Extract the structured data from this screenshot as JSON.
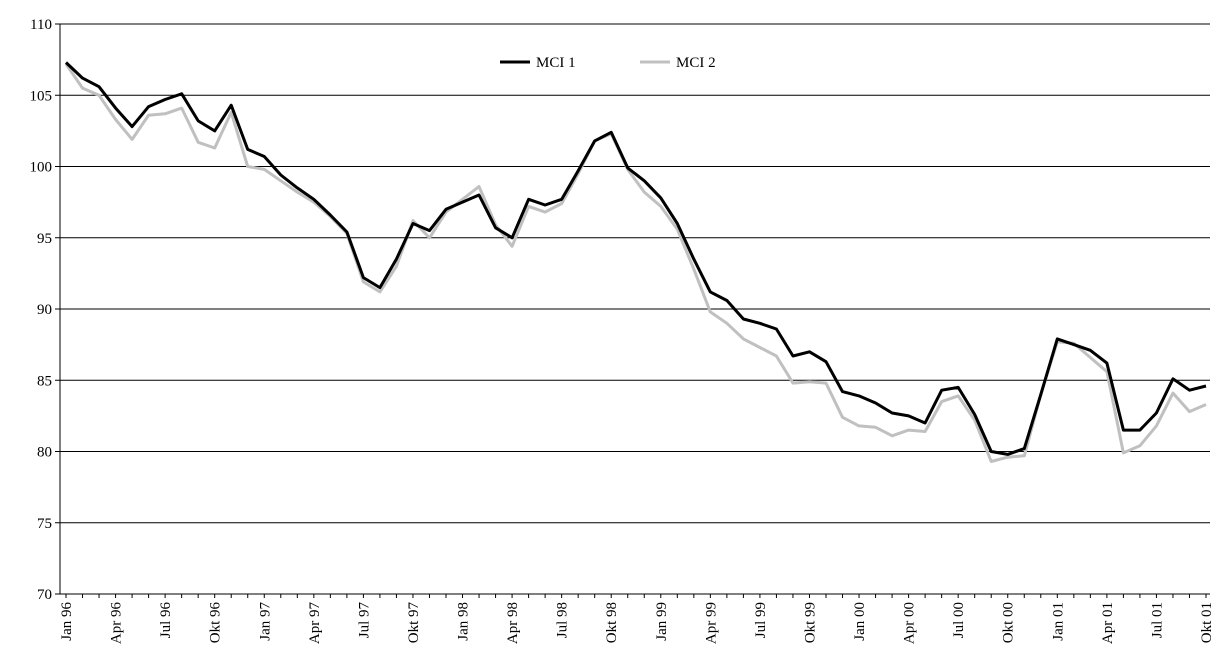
{
  "chart_data": {
    "type": "line",
    "categories": [
      "Jan 96",
      null,
      null,
      "Apr 96",
      null,
      null,
      "Jul 96",
      null,
      null,
      "Okt 96",
      null,
      null,
      "Jan 97",
      null,
      null,
      "Apr 97",
      null,
      null,
      "Jul 97",
      null,
      null,
      "Okt 97",
      null,
      null,
      "Jan 98",
      null,
      null,
      "Apr 98",
      null,
      null,
      "Jul 98",
      null,
      null,
      "Okt 98",
      null,
      null,
      "Jan 99",
      null,
      null,
      "Apr 99",
      null,
      null,
      "Jul 99",
      null,
      null,
      "Okt 99",
      null,
      null,
      "Jan 00",
      null,
      null,
      "Apr 00",
      null,
      null,
      "Jul 00",
      null,
      null,
      "Okt 00",
      null,
      null,
      "Jan 01",
      null,
      null,
      "Apr 01",
      null,
      null,
      "Jul 01",
      null,
      null,
      "Okt 01"
    ],
    "series": [
      {
        "name": "MCI 1",
        "color": "#000000",
        "values": [
          107.3,
          106.2,
          105.6,
          104.1,
          102.8,
          104.2,
          104.7,
          105.1,
          103.2,
          102.5,
          104.3,
          101.2,
          100.7,
          99.4,
          98.5,
          97.7,
          96.6,
          95.4,
          92.2,
          91.5,
          93.5,
          96.0,
          95.5,
          97.0,
          97.5,
          98.0,
          95.7,
          95.0,
          97.7,
          97.3,
          97.7,
          99.7,
          101.8,
          102.4,
          99.9,
          99.0,
          97.8,
          96.0,
          93.5,
          91.2,
          90.6,
          89.3,
          89.0,
          88.6,
          86.7,
          87.0,
          86.3,
          84.2,
          83.9,
          83.4,
          82.7,
          82.5,
          82.0,
          84.3,
          84.5,
          82.6,
          80.0,
          79.8,
          80.2,
          84.0,
          87.9,
          87.5,
          87.1,
          86.2,
          81.5,
          81.5,
          82.7,
          85.1,
          84.3,
          84.6
        ]
      },
      {
        "name": "MCI 2",
        "color": "#c0c0c0",
        "values": [
          107.2,
          105.5,
          105.0,
          103.3,
          101.9,
          103.6,
          103.7,
          104.1,
          101.7,
          101.3,
          103.8,
          100.0,
          99.8,
          99.0,
          98.2,
          97.5,
          96.5,
          95.3,
          91.9,
          91.2,
          93.0,
          96.2,
          95.0,
          96.8,
          97.7,
          98.6,
          95.9,
          94.4,
          97.2,
          96.8,
          97.4,
          99.5,
          101.8,
          102.3,
          99.8,
          98.2,
          97.2,
          95.6,
          92.8,
          89.8,
          89.0,
          87.9,
          87.3,
          86.7,
          84.8,
          84.9,
          84.8,
          82.4,
          81.8,
          81.7,
          81.1,
          81.5,
          81.4,
          83.5,
          83.9,
          82.2,
          79.3,
          79.6,
          79.7,
          84.0,
          87.7,
          87.6,
          86.6,
          85.6,
          79.9,
          80.4,
          81.8,
          84.1,
          82.8,
          83.3
        ]
      }
    ],
    "ylim": [
      70,
      110
    ],
    "yticks": [
      70,
      75,
      80,
      85,
      90,
      95,
      100,
      105,
      110
    ],
    "grid": true,
    "legend": "top"
  }
}
